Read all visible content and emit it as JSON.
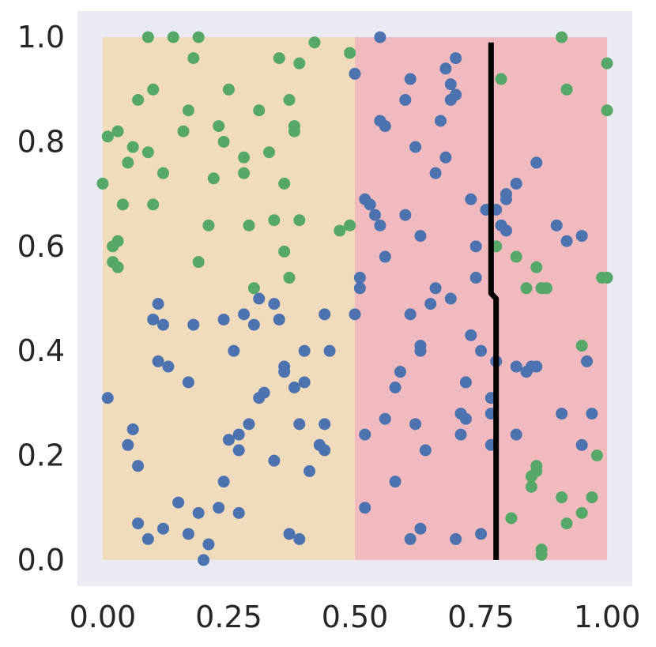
{
  "chart_data": {
    "type": "scatter",
    "title": "",
    "xlabel": "",
    "ylabel": "",
    "xlim": [
      -0.05,
      1.05
    ],
    "ylim": [
      -0.05,
      1.05
    ],
    "grid": false,
    "x_ticks": [
      0.0,
      0.25,
      0.5,
      0.75,
      1.0
    ],
    "x_tick_labels": [
      "0.00",
      "0.25",
      "0.50",
      "0.75",
      "1.00"
    ],
    "y_ticks": [
      0.0,
      0.2,
      0.4,
      0.6,
      0.8,
      1.0
    ],
    "y_tick_labels": [
      "0.0",
      "0.2",
      "0.4",
      "0.6",
      "0.8",
      "1.0"
    ],
    "background_color": "#eaeaf2",
    "regions": [
      {
        "x0": 0.0,
        "x1": 0.5,
        "y0": 0.0,
        "y1": 1.0,
        "color": "#f0dbbd"
      },
      {
        "x0": 0.5,
        "x1": 1.0,
        "y0": 0.0,
        "y1": 1.0,
        "color": "#f0babe"
      }
    ],
    "boundary_line": {
      "color": "#000000",
      "points": [
        [
          0.77,
          0.99
        ],
        [
          0.77,
          0.51
        ],
        [
          0.78,
          0.5
        ],
        [
          0.78,
          0.0
        ]
      ]
    },
    "series": [
      {
        "color": "#4c72b0",
        "points": [
          [
            0.01,
            0.31
          ],
          [
            0.05,
            0.22
          ],
          [
            0.06,
            0.25
          ],
          [
            0.07,
            0.18
          ],
          [
            0.07,
            0.07
          ],
          [
            0.09,
            0.04
          ],
          [
            0.1,
            0.46
          ],
          [
            0.11,
            0.49
          ],
          [
            0.11,
            0.38
          ],
          [
            0.12,
            0.06
          ],
          [
            0.12,
            0.45
          ],
          [
            0.13,
            0.37
          ],
          [
            0.15,
            0.11
          ],
          [
            0.17,
            0.05
          ],
          [
            0.17,
            0.34
          ],
          [
            0.18,
            0.45
          ],
          [
            0.19,
            0.09
          ],
          [
            0.2,
            0.0
          ],
          [
            0.21,
            0.03
          ],
          [
            0.23,
            0.1
          ],
          [
            0.24,
            0.15
          ],
          [
            0.24,
            0.46
          ],
          [
            0.25,
            0.23
          ],
          [
            0.26,
            0.4
          ],
          [
            0.27,
            0.24
          ],
          [
            0.27,
            0.21
          ],
          [
            0.27,
            0.09
          ],
          [
            0.28,
            0.47
          ],
          [
            0.29,
            0.26
          ],
          [
            0.3,
            0.45
          ],
          [
            0.31,
            0.5
          ],
          [
            0.31,
            0.31
          ],
          [
            0.32,
            0.32
          ],
          [
            0.34,
            0.49
          ],
          [
            0.34,
            0.19
          ],
          [
            0.35,
            0.46
          ],
          [
            0.36,
            0.37
          ],
          [
            0.36,
            0.36
          ],
          [
            0.37,
            0.05
          ],
          [
            0.38,
            0.33
          ],
          [
            0.39,
            0.04
          ],
          [
            0.39,
            0.26
          ],
          [
            0.4,
            0.4
          ],
          [
            0.4,
            0.34
          ],
          [
            0.41,
            0.17
          ],
          [
            0.43,
            0.22
          ],
          [
            0.44,
            0.21
          ],
          [
            0.44,
            0.26
          ],
          [
            0.44,
            0.47
          ],
          [
            0.45,
            0.4
          ],
          [
            0.5,
            0.47
          ],
          [
            0.5,
            0.93
          ],
          [
            0.51,
            0.52
          ],
          [
            0.51,
            0.54
          ],
          [
            0.52,
            0.1
          ],
          [
            0.52,
            0.24
          ],
          [
            0.52,
            0.69
          ],
          [
            0.53,
            0.68
          ],
          [
            0.53,
            0.68
          ],
          [
            0.54,
            0.66
          ],
          [
            0.55,
            1.0
          ],
          [
            0.55,
            0.64
          ],
          [
            0.55,
            0.84
          ],
          [
            0.56,
            0.83
          ],
          [
            0.56,
            0.58
          ],
          [
            0.56,
            0.27
          ],
          [
            0.58,
            0.33
          ],
          [
            0.58,
            0.15
          ],
          [
            0.59,
            0.36
          ],
          [
            0.6,
            0.88
          ],
          [
            0.6,
            0.66
          ],
          [
            0.61,
            0.04
          ],
          [
            0.61,
            0.47
          ],
          [
            0.61,
            0.92
          ],
          [
            0.62,
            0.79
          ],
          [
            0.62,
            0.26
          ],
          [
            0.63,
            0.06
          ],
          [
            0.63,
            0.62
          ],
          [
            0.63,
            0.41
          ],
          [
            0.63,
            0.4
          ],
          [
            0.64,
            0.21
          ],
          [
            0.65,
            0.49
          ],
          [
            0.66,
            0.52
          ],
          [
            0.66,
            0.74
          ],
          [
            0.67,
            0.84
          ],
          [
            0.68,
            0.94
          ],
          [
            0.68,
            0.77
          ],
          [
            0.69,
            0.5
          ],
          [
            0.69,
            0.91
          ],
          [
            0.69,
            0.88
          ],
          [
            0.7,
            0.89
          ],
          [
            0.7,
            0.96
          ],
          [
            0.7,
            0.04
          ],
          [
            0.71,
            0.28
          ],
          [
            0.71,
            0.24
          ],
          [
            0.72,
            0.27
          ],
          [
            0.72,
            0.34
          ],
          [
            0.73,
            0.69
          ],
          [
            0.73,
            0.43
          ],
          [
            0.74,
            0.6
          ],
          [
            0.74,
            0.54
          ],
          [
            0.75,
            0.05
          ],
          [
            0.75,
            0.4
          ],
          [
            0.76,
            0.67
          ],
          [
            0.77,
            0.31
          ],
          [
            0.77,
            0.28
          ],
          [
            0.77,
            0.22
          ],
          [
            0.78,
            0.67
          ],
          [
            0.78,
            0.38
          ],
          [
            0.79,
            0.64
          ],
          [
            0.8,
            0.63
          ],
          [
            0.8,
            0.69
          ],
          [
            0.8,
            0.7
          ],
          [
            0.82,
            0.37
          ],
          [
            0.82,
            0.72
          ],
          [
            0.82,
            0.24
          ],
          [
            0.84,
            0.36
          ],
          [
            0.85,
            0.37
          ],
          [
            0.86,
            0.37
          ],
          [
            0.86,
            0.76
          ],
          [
            0.9,
            0.64
          ],
          [
            0.91,
            0.28
          ],
          [
            0.92,
            0.61
          ],
          [
            0.95,
            0.62
          ],
          [
            0.95,
            0.22
          ],
          [
            0.96,
            0.38
          ],
          [
            0.97,
            0.28
          ]
        ]
      },
      {
        "color": "#55a868",
        "points": [
          [
            0.0,
            0.72
          ],
          [
            0.01,
            0.81
          ],
          [
            0.02,
            0.6
          ],
          [
            0.02,
            0.57
          ],
          [
            0.03,
            0.61
          ],
          [
            0.03,
            0.82
          ],
          [
            0.03,
            0.56
          ],
          [
            0.04,
            0.68
          ],
          [
            0.05,
            0.76
          ],
          [
            0.06,
            0.79
          ],
          [
            0.07,
            0.88
          ],
          [
            0.09,
            1.0
          ],
          [
            0.09,
            0.78
          ],
          [
            0.1,
            0.68
          ],
          [
            0.1,
            0.9
          ],
          [
            0.12,
            0.74
          ],
          [
            0.14,
            1.0
          ],
          [
            0.16,
            0.82
          ],
          [
            0.17,
            0.86
          ],
          [
            0.18,
            0.96
          ],
          [
            0.19,
            1.0
          ],
          [
            0.19,
            0.57
          ],
          [
            0.21,
            0.64
          ],
          [
            0.22,
            0.73
          ],
          [
            0.23,
            0.83
          ],
          [
            0.24,
            0.8
          ],
          [
            0.25,
            0.9
          ],
          [
            0.28,
            0.77
          ],
          [
            0.28,
            0.74
          ],
          [
            0.29,
            0.64
          ],
          [
            0.3,
            0.52
          ],
          [
            0.31,
            0.86
          ],
          [
            0.33,
            0.78
          ],
          [
            0.34,
            0.65
          ],
          [
            0.35,
            0.96
          ],
          [
            0.36,
            0.59
          ],
          [
            0.36,
            0.72
          ],
          [
            0.37,
            0.54
          ],
          [
            0.37,
            0.88
          ],
          [
            0.38,
            0.83
          ],
          [
            0.38,
            0.82
          ],
          [
            0.39,
            0.65
          ],
          [
            0.39,
            0.95
          ],
          [
            0.42,
            0.99
          ],
          [
            0.47,
            0.63
          ],
          [
            0.49,
            0.64
          ],
          [
            0.49,
            0.97
          ],
          [
            0.78,
            0.6
          ],
          [
            0.79,
            0.92
          ],
          [
            0.81,
            0.08
          ],
          [
            0.82,
            0.58
          ],
          [
            0.84,
            0.52
          ],
          [
            0.85,
            0.16
          ],
          [
            0.85,
            0.14
          ],
          [
            0.86,
            0.17
          ],
          [
            0.86,
            0.18
          ],
          [
            0.86,
            0.56
          ],
          [
            0.87,
            0.52
          ],
          [
            0.87,
            0.52
          ],
          [
            0.87,
            0.01
          ],
          [
            0.87,
            0.02
          ],
          [
            0.88,
            0.52
          ],
          [
            0.91,
            1.0
          ],
          [
            0.91,
            0.12
          ],
          [
            0.92,
            0.07
          ],
          [
            0.92,
            0.9
          ],
          [
            0.95,
            0.41
          ],
          [
            0.95,
            0.09
          ],
          [
            0.97,
            0.12
          ],
          [
            0.98,
            0.2
          ],
          [
            0.99,
            0.54
          ],
          [
            1.0,
            0.54
          ],
          [
            1.0,
            0.95
          ],
          [
            1.0,
            0.86
          ]
        ]
      }
    ]
  }
}
